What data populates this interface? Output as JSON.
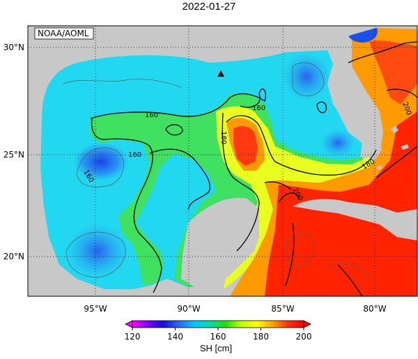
{
  "map": {
    "title": "2022-01-27",
    "credit": "NOAA/AOML",
    "lat_labels": [
      "30°N",
      "25°N",
      "20°N"
    ],
    "lon_labels": [
      "95°W",
      "90°W",
      "85°W",
      "80°W"
    ],
    "contour_labels": [
      "160",
      "160",
      "160",
      "180",
      "180",
      "200",
      "200",
      "160"
    ],
    "marker": "triangle-station-marker"
  },
  "colorbar": {
    "title": "SH [cm]",
    "ticks": [
      "120",
      "140",
      "160",
      "180",
      "200"
    ],
    "min": 120,
    "max": 200,
    "stops": [
      "#ff00ff",
      "#7a00ff",
      "#1010e0",
      "#2a6cf0",
      "#00c8ff",
      "#00e0a0",
      "#22e000",
      "#c8ff00",
      "#ffff00",
      "#ffa000",
      "#ff3000",
      "#ff0000"
    ]
  },
  "colors": {
    "land": "#c8c8c8",
    "ocean_out": "#ffffff",
    "contour_thick": "#000000",
    "contour_thin": "#5a5a5a"
  }
}
